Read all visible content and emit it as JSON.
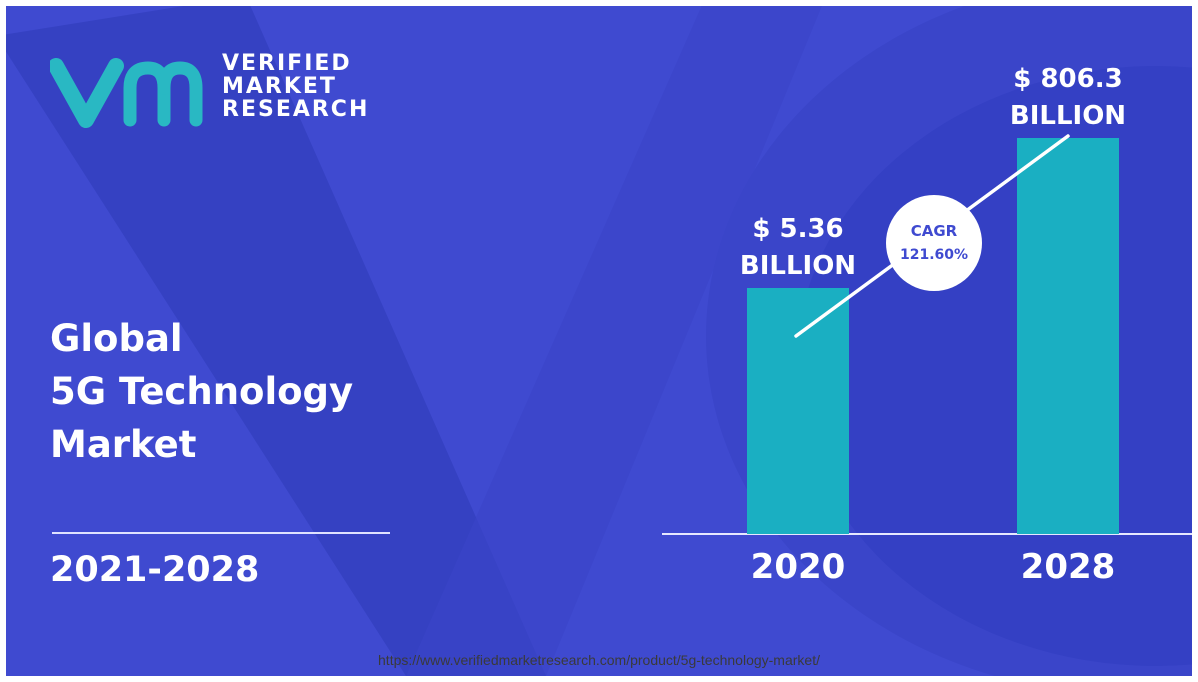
{
  "brand": {
    "line1": "VERIFIED",
    "line2": "MARKET",
    "line3": "RESEARCH",
    "logo_icon": "vmr-logo-icon",
    "logo_color": "#29b8c3"
  },
  "title": {
    "line1": "Global",
    "line2": "5G Technology",
    "line3": "Market"
  },
  "period": "2021-2028",
  "source_url": "https://www.verifiedmarketresearch.com/product/5g-technology-market/",
  "colors": {
    "background": "#3f4ad0",
    "bar": "#1aafc2",
    "text": "#ffffff"
  },
  "chart_data": {
    "type": "bar",
    "categories": [
      "2020",
      "2028"
    ],
    "values": [
      5.36,
      806.3
    ],
    "value_labels": [
      {
        "line1": "$ 5.36",
        "line2": "BILLION"
      },
      {
        "line1": "$ 806.3",
        "line2": "BILLION"
      }
    ],
    "cagr_label": "CAGR",
    "cagr_value": "121.60%",
    "title": "",
    "xlabel": "",
    "ylabel": "",
    "grid": false,
    "legend": "none"
  }
}
